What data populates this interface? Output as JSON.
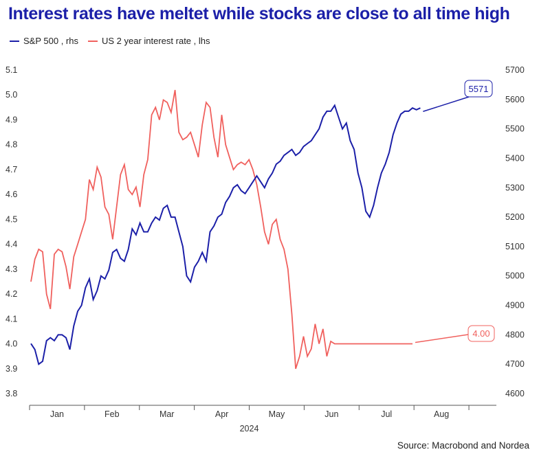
{
  "chart_data": {
    "type": "line",
    "title": "Interest rates have meltet while stocks are close to all time high",
    "year_label": "2024",
    "source": "Source: Macrobond and Nordea",
    "x_labels": [
      "Jan",
      "Feb",
      "Mar",
      "Apr",
      "May",
      "Jun",
      "Jul",
      "Aug"
    ],
    "left_axis": {
      "ticks": [
        "5.1",
        "5.0",
        "4.9",
        "4.8",
        "4.7",
        "4.6",
        "4.5",
        "4.4",
        "4.3",
        "4.2",
        "4.1",
        "4.0",
        "3.9",
        "3.8"
      ],
      "min": 3.8,
      "max": 5.1
    },
    "right_axis": {
      "ticks": [
        "5700",
        "5600",
        "5500",
        "5400",
        "5300",
        "5200",
        "5100",
        "5000",
        "4900",
        "4800",
        "4700",
        "4600"
      ],
      "min": 4600,
      "max": 5700
    },
    "colors": {
      "sp500": "#1b1fa8",
      "rate": "#f0605d"
    },
    "series": [
      {
        "name": "S&P 500 , rhs",
        "axis": "right",
        "end_label": "5571",
        "x": [
          0,
          2,
          4,
          6,
          8,
          10,
          12,
          14,
          16,
          18,
          20,
          22,
          24,
          26,
          28,
          30,
          32,
          34,
          36,
          38,
          40,
          42,
          44,
          46,
          48,
          50,
          52,
          54,
          56,
          58,
          60,
          62,
          64,
          66,
          68,
          70,
          72,
          74,
          76,
          78,
          80,
          82,
          84,
          86,
          88,
          90,
          92,
          94,
          96,
          98,
          100,
          102,
          104,
          106,
          108,
          110,
          112,
          114,
          116,
          118,
          120,
          122,
          124,
          126,
          128,
          130,
          132,
          134,
          136,
          138,
          140,
          142,
          144,
          146,
          148,
          150,
          152,
          154,
          156,
          158,
          160,
          162,
          164,
          166,
          168,
          170,
          172,
          174,
          176,
          178,
          180,
          182,
          184,
          186,
          188,
          190,
          192,
          194,
          196,
          198,
          200,
          202,
          204,
          206,
          208,
          210,
          212,
          214,
          216,
          218,
          220
        ],
        "values": [
          4770,
          4750,
          4700,
          4710,
          4780,
          4790,
          4780,
          4800,
          4800,
          4790,
          4750,
          4830,
          4880,
          4900,
          4960,
          4990,
          4920,
          4950,
          5000,
          4990,
          5020,
          5080,
          5090,
          5060,
          5050,
          5090,
          5160,
          5140,
          5180,
          5150,
          5150,
          5180,
          5200,
          5190,
          5230,
          5240,
          5200,
          5200,
          5150,
          5100,
          5000,
          4980,
          5030,
          5050,
          5080,
          5050,
          5150,
          5170,
          5200,
          5210,
          5250,
          5270,
          5300,
          5310,
          5290,
          5280,
          5300,
          5320,
          5340,
          5320,
          5300,
          5330,
          5350,
          5380,
          5390,
          5410,
          5420,
          5430,
          5410,
          5420,
          5440,
          5450,
          5460,
          5480,
          5500,
          5540,
          5560,
          5560,
          5580,
          5540,
          5500,
          5520,
          5460,
          5430,
          5350,
          5300,
          5220,
          5200,
          5240,
          5300,
          5350,
          5380,
          5420,
          5480,
          5520,
          5550,
          5560,
          5560,
          5571,
          5565,
          5571,
          5570,
          5571,
          5571,
          5571,
          5571,
          5571,
          5571,
          5571,
          5571,
          5571
        ]
      },
      {
        "name": "US 2 year interest rate , lhs",
        "axis": "left",
        "end_label": "4.00",
        "x": [
          0,
          2,
          4,
          6,
          8,
          10,
          12,
          14,
          16,
          18,
          20,
          22,
          24,
          26,
          28,
          30,
          32,
          34,
          36,
          38,
          40,
          42,
          44,
          46,
          48,
          50,
          52,
          54,
          56,
          58,
          60,
          62,
          64,
          66,
          68,
          70,
          72,
          74,
          76,
          78,
          80,
          82,
          84,
          86,
          88,
          90,
          92,
          94,
          96,
          98,
          100,
          102,
          104,
          106,
          108,
          110,
          112,
          114,
          116,
          118,
          120,
          122,
          124,
          126,
          128,
          130,
          132,
          134,
          136,
          138,
          140,
          142,
          144,
          146,
          148,
          150,
          152,
          154,
          156,
          158,
          160,
          162,
          164,
          166,
          168,
          170,
          172,
          174,
          176,
          178,
          180,
          182,
          184,
          186,
          188,
          190,
          192,
          194,
          196,
          198,
          200,
          202,
          204,
          206,
          208,
          210,
          212,
          214,
          216,
          218,
          220
        ],
        "values": [
          4.25,
          4.34,
          4.38,
          4.37,
          4.2,
          4.14,
          4.36,
          4.38,
          4.37,
          4.31,
          4.22,
          4.35,
          4.4,
          4.45,
          4.5,
          4.66,
          4.62,
          4.71,
          4.67,
          4.55,
          4.52,
          4.42,
          4.55,
          4.68,
          4.72,
          4.62,
          4.6,
          4.63,
          4.55,
          4.68,
          4.74,
          4.92,
          4.95,
          4.9,
          4.98,
          4.97,
          4.93,
          5.02,
          4.85,
          4.82,
          4.83,
          4.85,
          4.8,
          4.75,
          4.88,
          4.97,
          4.95,
          4.83,
          4.75,
          4.92,
          4.8,
          4.75,
          4.7,
          4.72,
          4.73,
          4.72,
          4.74,
          4.7,
          4.64,
          4.55,
          4.45,
          4.4,
          4.48,
          4.5,
          4.42,
          4.38,
          4.3,
          4.12,
          3.9,
          3.95,
          4.03,
          3.95,
          3.98,
          4.08,
          4.0,
          4.06,
          3.95,
          4.01,
          4.0,
          4.0,
          4.0,
          4.0,
          4.0,
          4.0,
          4.0,
          4.0,
          4.0,
          4.0,
          4.0,
          4.0,
          4.0,
          4.0,
          4.0,
          4.0,
          4.0,
          4.0,
          4.0,
          4.0,
          4.0,
          4.0,
          4.0,
          4.0,
          4.0,
          4.0,
          4.0,
          4.0,
          4.0,
          4.0,
          4.0,
          4.0,
          4.0
        ]
      }
    ],
    "legend_placement": "top-left",
    "grid": false
  }
}
